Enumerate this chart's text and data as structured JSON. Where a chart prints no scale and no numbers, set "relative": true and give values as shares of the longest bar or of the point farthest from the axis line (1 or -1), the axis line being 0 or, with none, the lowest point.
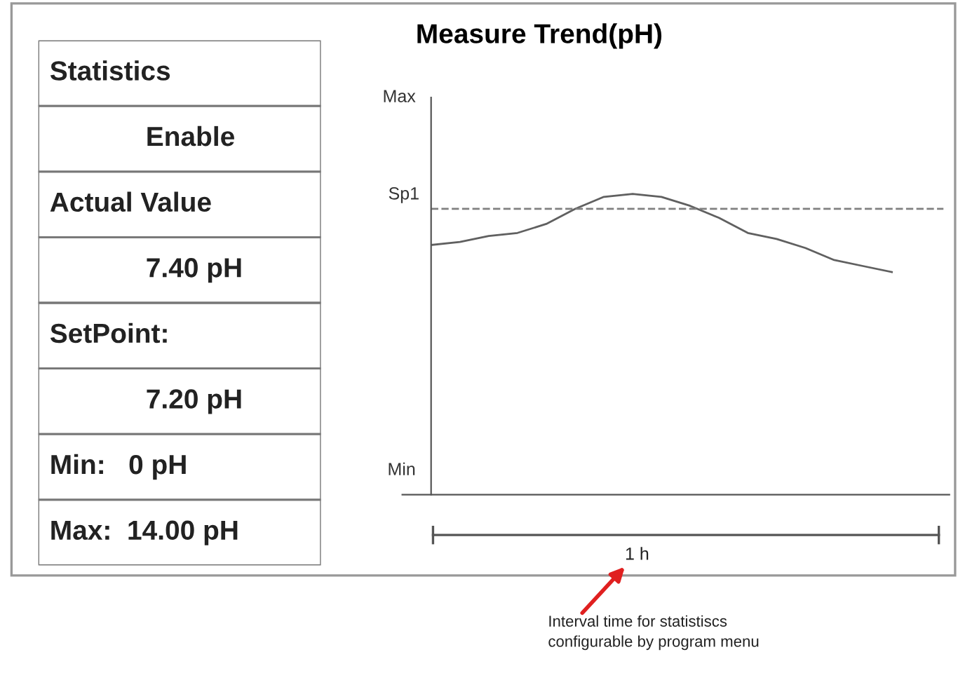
{
  "chart_data": [
    {
      "type": "other",
      "annotations": [
        "Statistics",
        "Enable",
        "Actual Value",
        "7.40 pH",
        "SetPoint:",
        "7.20 pH",
        "Min:   0 pH",
        "Max:  14.00 pH"
      ]
    },
    {
      "type": "line",
      "title": "Measure Trend(pH)",
      "relative": true,
      "categories": [
        null,
        null,
        null,
        null,
        null,
        null,
        null,
        null,
        null,
        null,
        null,
        null,
        null,
        null,
        null,
        null,
        null
      ],
      "series": [
        {
          "color": "#606060",
          "values": [
            0.83,
            0.84,
            0.86,
            0.87,
            0.9,
            0.95,
            0.99,
            1,
            0.99,
            0.96,
            0.92,
            0.87,
            0.85,
            0.82,
            0.78,
            0.76,
            0.74
          ]
        }
      ],
      "ref_lines": [
        {
          "axis": "y",
          "value": 0.95,
          "label": "Sp1",
          "color": "#808080",
          "line_style": "dashed"
        }
      ],
      "annotations": [
        "Max",
        "Min",
        "1 h",
        "Interval time for statistiscs\nconfigurable by program menu"
      ],
      "marker": "none",
      "line_style": "solid"
    }
  ]
}
